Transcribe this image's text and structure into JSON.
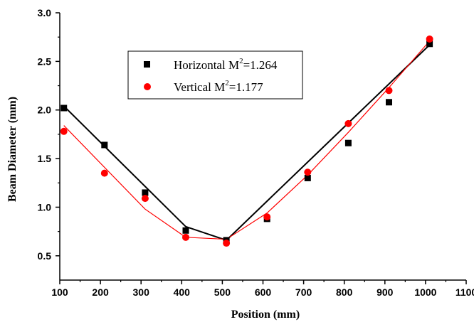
{
  "chart_data": {
    "type": "scatter",
    "xlabel": "Position (mm)",
    "ylabel": "Beam Diameter (mm)",
    "xlim": [
      100,
      1100
    ],
    "ylim": [
      0.25,
      3.0
    ],
    "xticks": [
      100,
      200,
      300,
      400,
      500,
      600,
      700,
      800,
      900,
      1000,
      1100
    ],
    "yticks": [
      0.5,
      1.0,
      1.5,
      2.0,
      2.5,
      3.0
    ],
    "xtick_labels": [
      "100",
      "200",
      "300",
      "400",
      "500",
      "600",
      "700",
      "800",
      "900",
      "1000",
      "1100"
    ],
    "ytick_labels": [
      "0.5",
      "1.0",
      "1.5",
      "2.0",
      "2.5",
      "3.0"
    ],
    "legend_position": "top-center",
    "grid": false,
    "series": [
      {
        "name": "Horizontal M",
        "legend_value": "=1.264",
        "marker": "square",
        "color": "#000000",
        "x": [
          110,
          210,
          310,
          410,
          510,
          610,
          710,
          810,
          910,
          1010
        ],
        "y": [
          2.02,
          1.64,
          1.15,
          0.76,
          0.66,
          0.88,
          1.3,
          1.66,
          2.08,
          2.68
        ],
        "fit_x": [
          110,
          410,
          510,
          1010
        ],
        "fit_y": [
          2.04,
          0.8,
          0.66,
          2.67
        ]
      },
      {
        "name": "Vertical M",
        "legend_value": "=1.177",
        "marker": "circle",
        "color": "#ff0000",
        "x": [
          110,
          210,
          310,
          410,
          510,
          610,
          710,
          810,
          910,
          1010
        ],
        "y": [
          1.78,
          1.35,
          1.09,
          0.69,
          0.63,
          0.9,
          1.36,
          1.86,
          2.2,
          2.73
        ],
        "fit_x": [
          110,
          310,
          410,
          510,
          610,
          710,
          810,
          910,
          1010
        ],
        "fit_y": [
          1.84,
          0.98,
          0.69,
          0.67,
          0.94,
          1.33,
          1.77,
          2.23,
          2.71
        ]
      }
    ],
    "legend_superscript": "2"
  }
}
